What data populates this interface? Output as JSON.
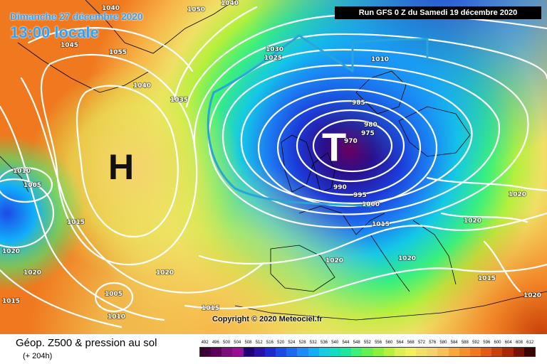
{
  "header": {
    "date": "Dimanche 27 décembre 2020",
    "local_time": "13:00 locale",
    "run": "Run GFS 0 Z du Samedi 19 décembre 2020"
  },
  "map": {
    "high_symbol": "H",
    "low_symbol": "T",
    "isobar_labels": [
      "1050",
      "1040",
      "1040",
      "1045",
      "1055",
      "1040",
      "1035",
      "1030",
      "1025",
      "1010",
      "1010",
      "1005",
      "1015",
      "1020",
      "1020",
      "1005",
      "1010",
      "1015",
      "1020",
      "1015",
      "1020",
      "1020",
      "1020",
      "1020",
      "1015",
      "1020",
      "985",
      "980",
      "975",
      "970",
      "990",
      "995",
      "1000",
      "1015"
    ]
  },
  "footer": {
    "copyright": "Copyright © 2020 Meteociel.fr",
    "product": "Géop. Z500 & pression au sol",
    "forecast_hour": "(+ 204h)"
  },
  "legend": {
    "values": [
      "492",
      "496",
      "500",
      "504",
      "508",
      "512",
      "516",
      "520",
      "524",
      "528",
      "532",
      "536",
      "540",
      "544",
      "548",
      "552",
      "556",
      "560",
      "564",
      "568",
      "572",
      "576",
      "580",
      "584",
      "588",
      "592",
      "596",
      "600",
      "604",
      "608",
      "612"
    ],
    "colors": [
      "#3d0036",
      "#5a005c",
      "#7a0f7a",
      "#960f96",
      "#1e0078",
      "#2a0fa8",
      "#1c2ad0",
      "#1c4ae8",
      "#1c6af2",
      "#1c8cf8",
      "#12aefa",
      "#14cde0",
      "#14dcc0",
      "#1ee6a0",
      "#3cf078",
      "#64f050",
      "#8ef03a",
      "#b4f03c",
      "#d8f050",
      "#f0f05a",
      "#f0e066",
      "#f5d26e",
      "#f7c05a",
      "#f7a83c",
      "#f5902a",
      "#f0781e",
      "#e25a14",
      "#c8400a",
      "#a82808",
      "#781404",
      "#3c0400"
    ]
  },
  "colors": {
    "accent_text": "#2aa5ff",
    "front": "#2aa5d8",
    "isobar": "#ffffff"
  }
}
